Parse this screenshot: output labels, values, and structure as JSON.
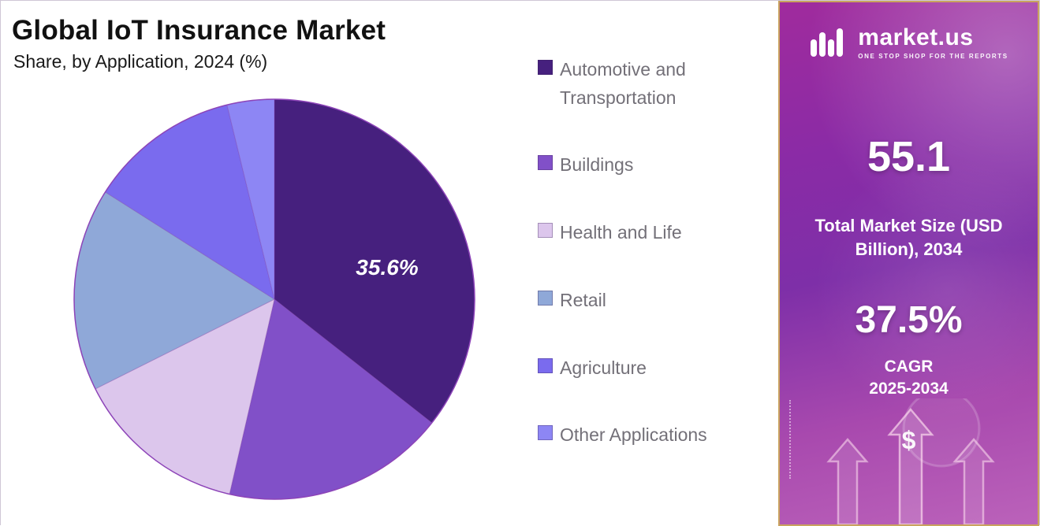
{
  "header": {
    "title": "Global IoT Insurance Market",
    "subtitle": "Share, by Application, 2024 (%)"
  },
  "chart_data": {
    "type": "pie",
    "title": "Global IoT Insurance Market",
    "subtitle": "Share, by Application, 2024 (%)",
    "categories": [
      "Automotive and Transportation",
      "Buildings",
      "Health and Life",
      "Retail",
      "Agriculture",
      "Other Applications"
    ],
    "values": [
      35.6,
      18.0,
      14.0,
      16.4,
      12.2,
      3.8
    ],
    "colors": [
      "#46207e",
      "#8150c8",
      "#dcc6ec",
      "#8fa8d8",
      "#7a6bee",
      "#8d86f4"
    ],
    "slice_label": "35.6%",
    "start_angle_deg": 0,
    "direction": "clockwise",
    "legend_position": "right"
  },
  "sidebar": {
    "logo_text": "market.us",
    "logo_tagline": "ONE STOP SHOP FOR THE REPORTS",
    "market_size_value": "55.1",
    "market_size_label": "Total Market Size (USD Billion), 2034",
    "cagr_value": "37.5%",
    "cagr_label": "CAGR",
    "cagr_period": "2025-2034",
    "dollar_symbol": "$",
    "accent_border_color": "#c9a35e",
    "gradient_top_color": "#a02b9d",
    "gradient_bottom_color": "#bb62ba"
  }
}
